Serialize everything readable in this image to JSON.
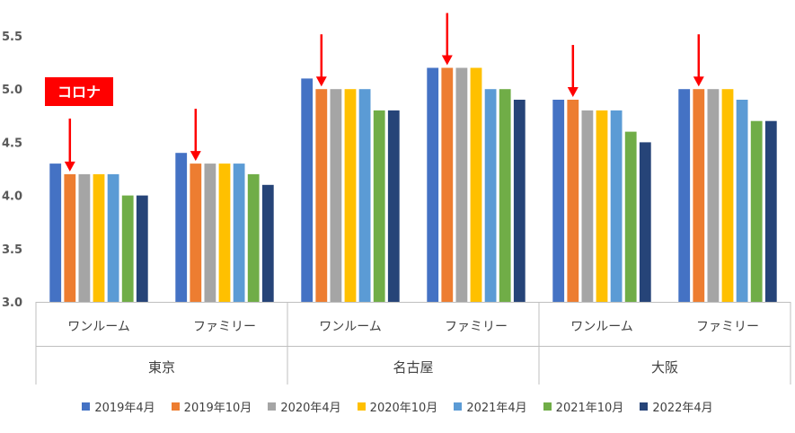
{
  "chart_data": {
    "type": "bar",
    "ylim": [
      3.0,
      5.5
    ],
    "y_ticks": [
      "3.0",
      "3.5",
      "4.0",
      "4.5",
      "5.0",
      "5.5"
    ],
    "grid": false,
    "legend_position": "bottom",
    "groups": [
      {
        "label": "東京",
        "categories": [
          "ワンルーム",
          "ファミリー"
        ]
      },
      {
        "label": "名古屋",
        "categories": [
          "ワンルーム",
          "ファミリー"
        ]
      },
      {
        "label": "大阪",
        "categories": [
          "ワンルーム",
          "ファミリー"
        ]
      }
    ],
    "series": [
      {
        "name": "2019年4月",
        "color": "#4472C4",
        "values": [
          4.3,
          4.4,
          5.1,
          5.2,
          4.9,
          5.0
        ]
      },
      {
        "name": "2019年10月",
        "color": "#ED7D31",
        "values": [
          4.2,
          4.3,
          5.0,
          5.2,
          4.9,
          5.0
        ]
      },
      {
        "name": "2020年4月",
        "color": "#A5A5A5",
        "values": [
          4.2,
          4.3,
          5.0,
          5.2,
          4.8,
          5.0
        ]
      },
      {
        "name": "2020年10月",
        "color": "#FFC000",
        "values": [
          4.2,
          4.3,
          5.0,
          5.2,
          4.8,
          5.0
        ]
      },
      {
        "name": "2021年4月",
        "color": "#5B9BD5",
        "values": [
          4.2,
          4.3,
          5.0,
          5.0,
          4.8,
          4.9
        ]
      },
      {
        "name": "2021年10月",
        "color": "#70AD47",
        "values": [
          4.0,
          4.2,
          4.8,
          5.0,
          4.6,
          4.7
        ]
      },
      {
        "name": "2022年4月",
        "color": "#264478",
        "values": [
          4.0,
          4.1,
          4.8,
          4.9,
          4.5,
          4.7
        ]
      }
    ],
    "annotation": {
      "text": "コロナ",
      "color": "#FF0000"
    }
  }
}
